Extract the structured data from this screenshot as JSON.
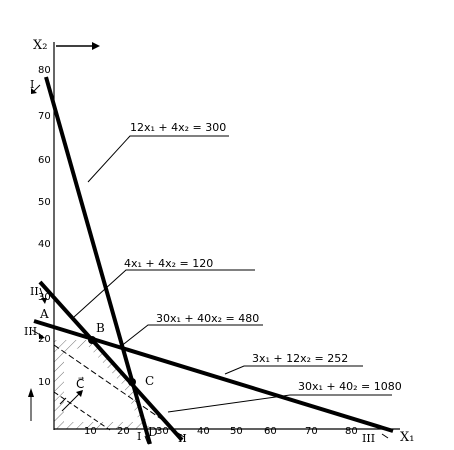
{
  "axes": {
    "x_label": "X₁",
    "y_label": "X₂",
    "x_ticks": [
      "10",
      "20",
      "30",
      "40",
      "50",
      "60",
      "70",
      "80"
    ],
    "y_ticks": [
      "10",
      "20",
      "30",
      "40",
      "50",
      "60",
      "70",
      "80"
    ]
  },
  "lines": [
    {
      "id": "I",
      "roman": "I",
      "equation": "12x₁ + 4x₂ = 300"
    },
    {
      "id": "II",
      "roman": "II",
      "equation": "4x₁ + 4x₂ = 120"
    },
    {
      "id": "III",
      "roman": "III",
      "equation": "3x₁ + 12x₂ = 252"
    }
  ],
  "objectives": [
    {
      "id": "obj1",
      "equation": "30x₁ + 40x₂ = 480"
    },
    {
      "id": "obj2",
      "equation": "30x₁ + 40₂ = 1080"
    }
  ],
  "points": {
    "A": "A",
    "B": "B",
    "C": "C",
    "D": "D"
  },
  "vector_label": "C⃗",
  "colors": {
    "line": "#000000",
    "background": "#ffffff"
  }
}
